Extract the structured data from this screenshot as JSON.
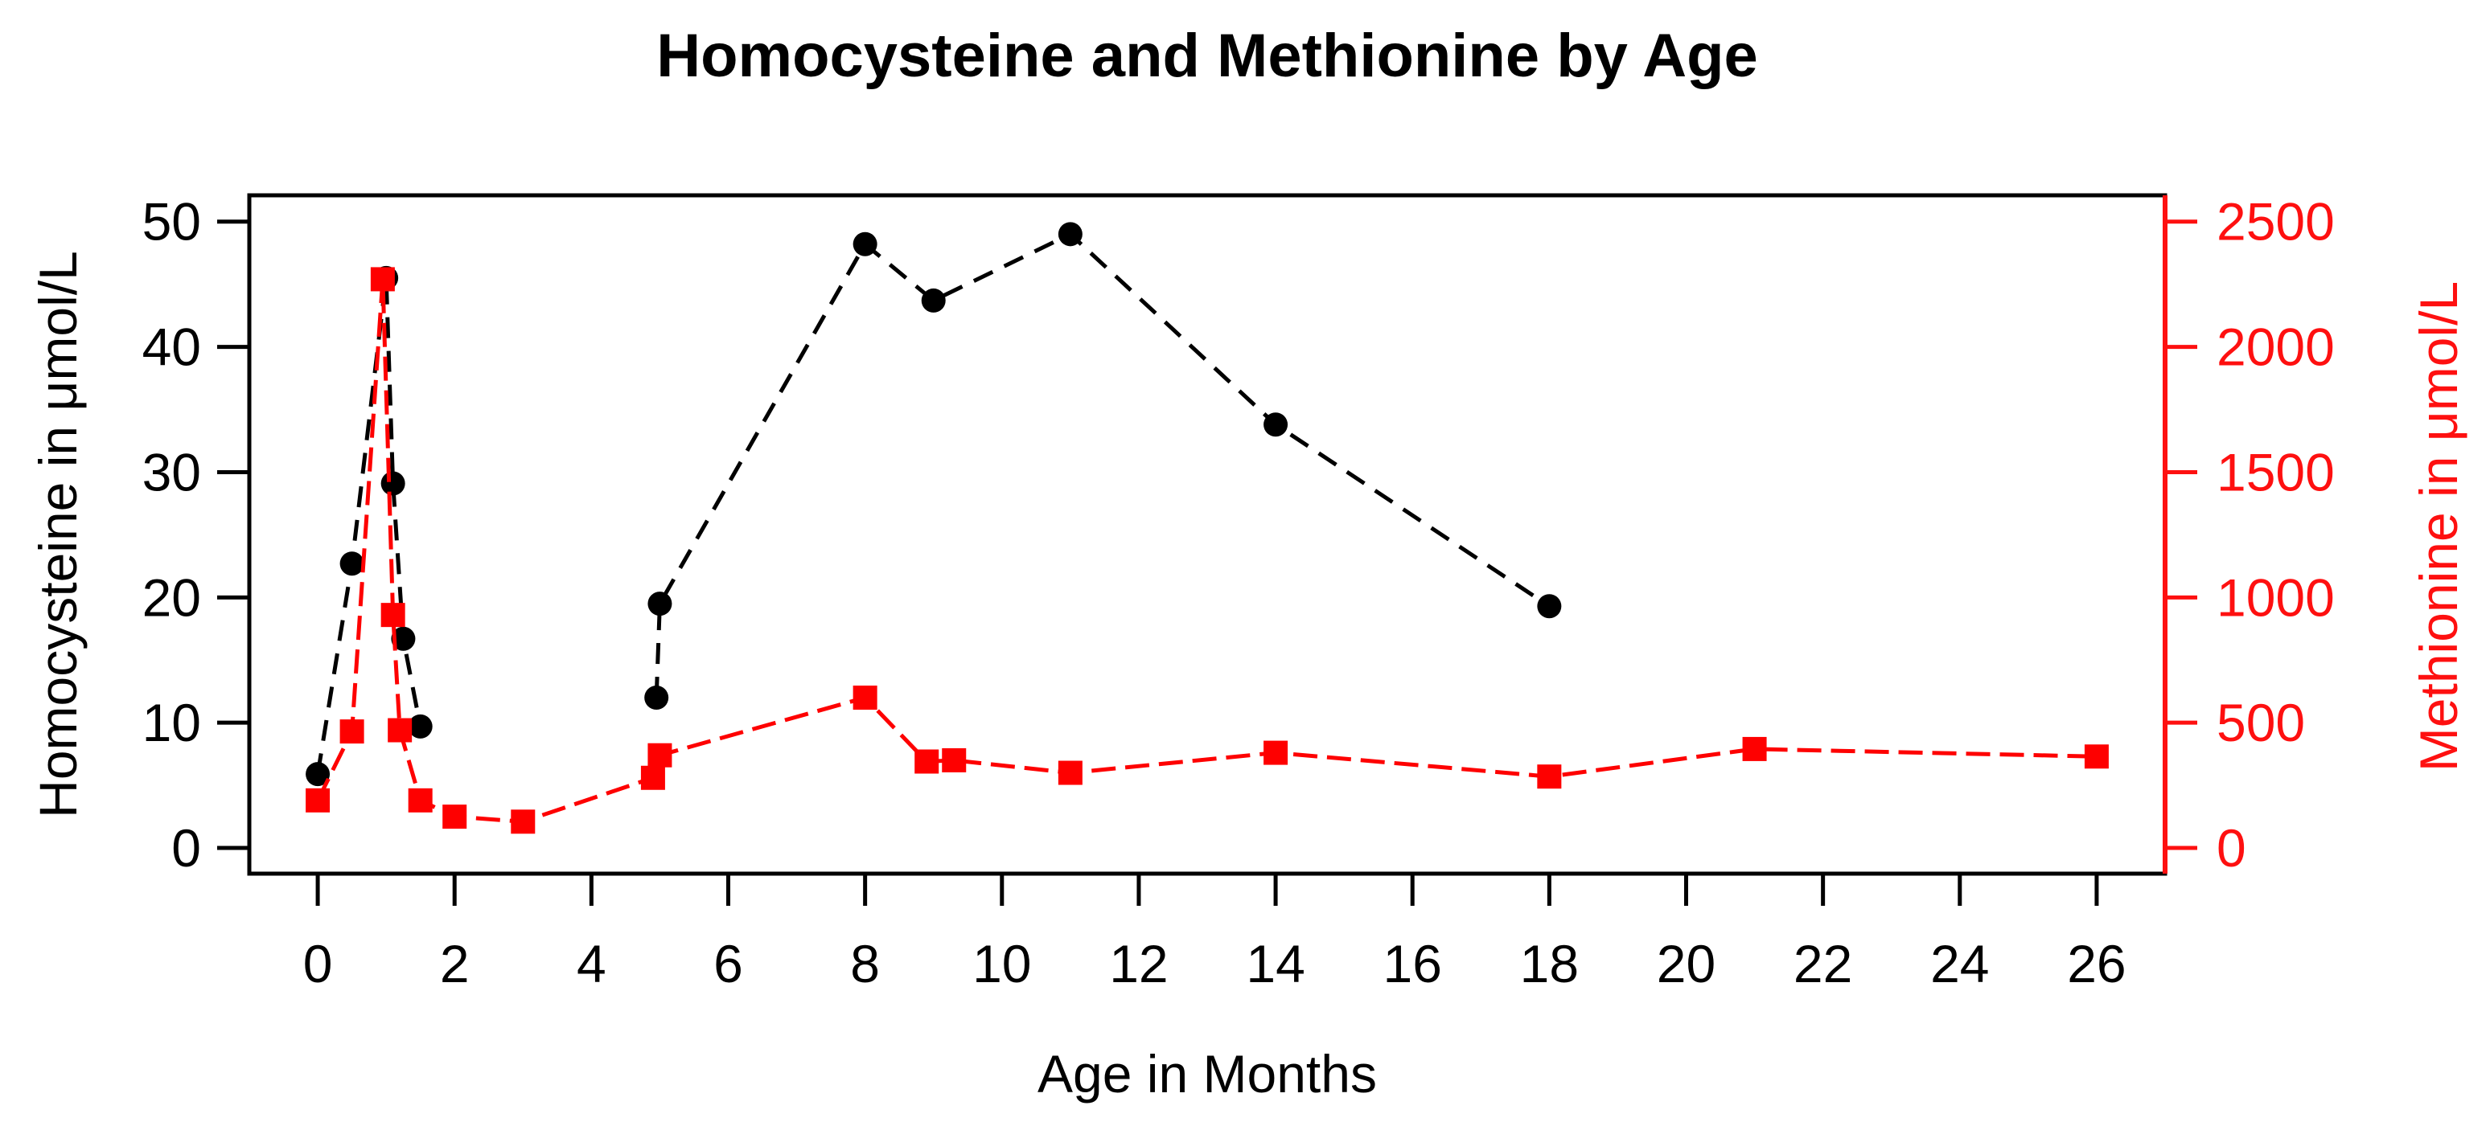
{
  "title": "Homocysteine and Methionine by Age",
  "chart_data": {
    "type": "line",
    "title": "Homocysteine and Methionine by Age",
    "xlabel": "Age in Months",
    "legend": "none",
    "grid": false,
    "background": "#ffffff",
    "x_axis": {
      "ticks": [
        0,
        2,
        4,
        6,
        8,
        10,
        12,
        14,
        16,
        18,
        20,
        22,
        24,
        26
      ],
      "lim": [
        -1.0,
        27.0
      ],
      "color": "#000000"
    },
    "y_axis_left": {
      "label": "Homocysteine in μmol/L",
      "ticks": [
        0,
        10,
        20,
        30,
        40,
        50
      ],
      "lim": [
        -2.05,
        52.1
      ],
      "color": "#000000"
    },
    "y_axis_right": {
      "label": "Methionine in μmol/L",
      "ticks": [
        0,
        500,
        1000,
        1500,
        2000,
        2500
      ],
      "lim": [
        -102.5,
        2605
      ],
      "color": "#fe1010",
      "scale_to_left": 0.02
    },
    "series": [
      {
        "name": "Homocysteine",
        "axis": "left",
        "color": "#000000",
        "marker": "circle",
        "marker_radius": 15,
        "line_style": "dashed",
        "dash": "26 16",
        "segments": [
          [
            [
              0,
              5.9
            ],
            [
              0.5,
              22.7
            ],
            [
              1.0,
              45.5
            ],
            [
              1.1,
              29.1
            ],
            [
              1.25,
              16.7
            ],
            [
              1.5,
              9.7
            ]
          ],
          [
            [
              4.95,
              12.0
            ],
            [
              5.0,
              19.5
            ],
            [
              8,
              48.2
            ],
            [
              9,
              43.7
            ],
            [
              11,
              49.0
            ],
            [
              14,
              33.8
            ],
            [
              18,
              19.3
            ]
          ]
        ]
      },
      {
        "name": "Methionine",
        "axis": "right",
        "color": "#fe0000",
        "marker": "square",
        "marker_radius": 15,
        "line_style": "dashed",
        "dash": "30 12",
        "segments": [
          [
            [
              0,
              190
            ],
            [
              0.5,
              465
            ],
            [
              0.95,
              2270
            ],
            [
              1.1,
              930
            ],
            [
              1.2,
              470
            ],
            [
              1.5,
              190
            ],
            [
              2,
              125
            ],
            [
              3,
              105
            ],
            [
              4.9,
              280
            ],
            [
              5.0,
              370
            ],
            [
              8,
              600
            ],
            [
              8.9,
              345
            ],
            [
              9.3,
              350
            ],
            [
              11,
              300
            ],
            [
              14,
              380
            ],
            [
              18,
              285
            ],
            [
              21,
              395
            ],
            [
              26,
              365
            ]
          ]
        ]
      }
    ]
  }
}
